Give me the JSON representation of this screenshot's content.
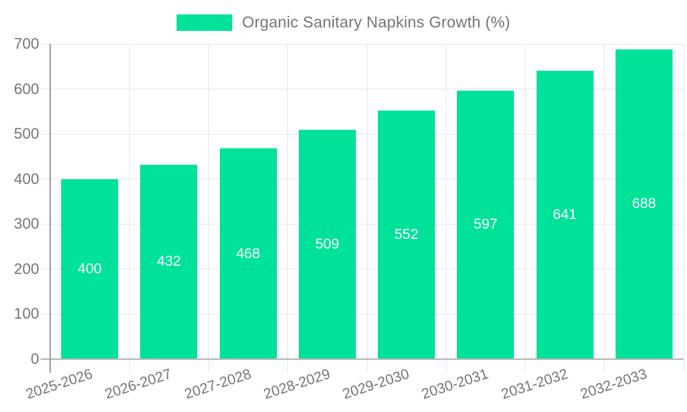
{
  "chart_data": {
    "type": "bar",
    "title": "Organic Sanitary Napkins Growth (%)",
    "categories": [
      "2025-2026",
      "2026-2027",
      "2027-2028",
      "2028-2029",
      "2029-2030",
      "2030-2031",
      "2031-2032",
      "2032-2033"
    ],
    "values": [
      400,
      432,
      468,
      509,
      552,
      597,
      641,
      688
    ],
    "xlabel": "",
    "ylabel": "",
    "ylim": [
      0,
      700
    ],
    "yticks": [
      0,
      100,
      200,
      300,
      400,
      500,
      600,
      700
    ],
    "grid": true,
    "legend_position": "top",
    "legend_entries": [
      "Organic Sanitary Napkins Growth (%)"
    ]
  },
  "colors": {
    "bar": "#00E299",
    "grid": "#e6e6e6",
    "axis_y": "#999999",
    "axis_x": "#b3b3b3",
    "tick_text": "#757575",
    "value_label": "#ffffff"
  }
}
